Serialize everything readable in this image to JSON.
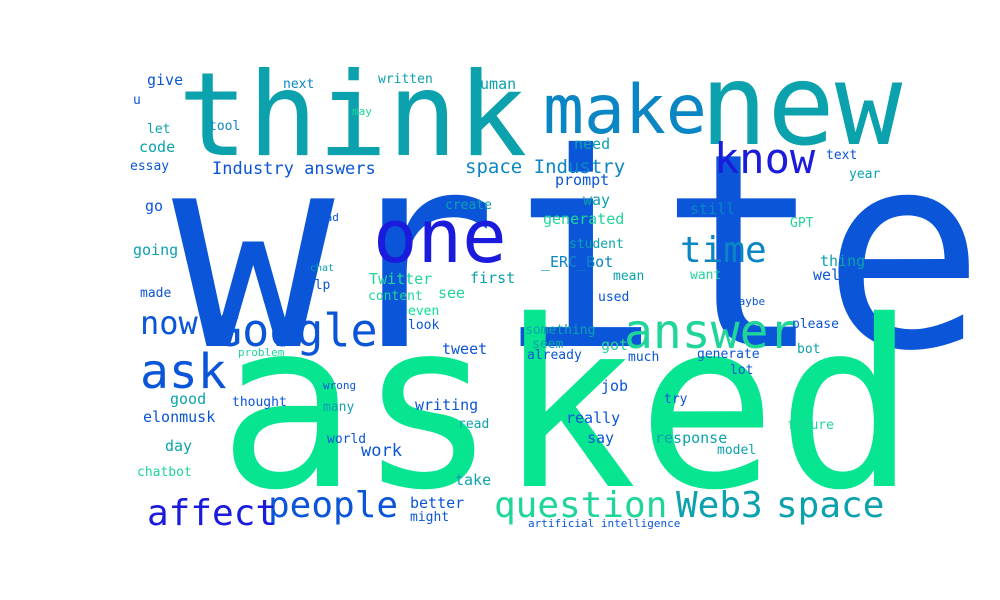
{
  "palette": {
    "dark_blue": "#1a1bdc",
    "blue": "#0a55d8",
    "teal_blue": "#0b86c4",
    "teal": "#0ba2ae",
    "green": "#08e590",
    "mint": "#1fd59a"
  },
  "words": [
    {
      "text": "write",
      "color": "blue"
    },
    {
      "text": "asked",
      "color": "green"
    },
    {
      "text": "think",
      "color": "teal"
    },
    {
      "text": "new",
      "color": "teal"
    },
    {
      "text": "make",
      "color": "teal_blue"
    },
    {
      "text": "one",
      "color": "dark_blue"
    },
    {
      "text": "know",
      "color": "dark_blue"
    },
    {
      "text": "answer",
      "color": "mint"
    },
    {
      "text": "Google",
      "color": "blue"
    },
    {
      "text": "ask",
      "color": "blue"
    },
    {
      "text": "time",
      "color": "teal_blue"
    },
    {
      "text": "now",
      "color": "blue"
    },
    {
      "text": "question",
      "color": "mint"
    },
    {
      "text": "Web3",
      "color": "teal"
    },
    {
      "text": "space",
      "color": "teal"
    },
    {
      "text": "people",
      "color": "blue"
    },
    {
      "text": "affect",
      "color": "dark_blue"
    },
    {
      "text": "Industry answers",
      "color": "blue"
    },
    {
      "text": "space Industry",
      "color": "teal_blue"
    },
    {
      "text": "give",
      "color": "blue"
    },
    {
      "text": "next",
      "color": "teal_blue"
    },
    {
      "text": "written",
      "color": "teal"
    },
    {
      "text": "human",
      "color": "teal"
    },
    {
      "text": "u",
      "color": "blue"
    },
    {
      "text": "may",
      "color": "mint"
    },
    {
      "text": "let",
      "color": "teal"
    },
    {
      "text": "tool",
      "color": "teal_blue"
    },
    {
      "text": "code",
      "color": "teal"
    },
    {
      "text": "essay",
      "color": "blue"
    },
    {
      "text": "need",
      "color": "teal"
    },
    {
      "text": "prompt",
      "color": "blue"
    },
    {
      "text": "text",
      "color": "blue"
    },
    {
      "text": "year",
      "color": "teal"
    },
    {
      "text": "go",
      "color": "blue"
    },
    {
      "text": "bad",
      "color": "blue"
    },
    {
      "text": "create",
      "color": "teal"
    },
    {
      "text": "way",
      "color": "teal"
    },
    {
      "text": "generated",
      "color": "mint"
    },
    {
      "text": "still",
      "color": "teal_blue"
    },
    {
      "text": "GPT",
      "color": "mint"
    },
    {
      "text": "going",
      "color": "teal"
    },
    {
      "text": "student",
      "color": "teal"
    },
    {
      "text": "thing",
      "color": "teal"
    },
    {
      "text": "chat",
      "color": "teal"
    },
    {
      "text": "_ERC_Bot",
      "color": "teal_blue"
    },
    {
      "text": "well",
      "color": "blue"
    },
    {
      "text": "Twitter",
      "color": "mint"
    },
    {
      "text": "first",
      "color": "teal"
    },
    {
      "text": "mean",
      "color": "teal"
    },
    {
      "text": "want",
      "color": "mint"
    },
    {
      "text": "made",
      "color": "blue"
    },
    {
      "text": "content",
      "color": "mint"
    },
    {
      "text": "help",
      "color": "blue"
    },
    {
      "text": "see",
      "color": "mint"
    },
    {
      "text": "used",
      "color": "blue"
    },
    {
      "text": "Maybe",
      "color": "blue"
    },
    {
      "text": "even",
      "color": "green"
    },
    {
      "text": "look",
      "color": "blue"
    },
    {
      "text": "something",
      "color": "teal"
    },
    {
      "text": "please",
      "color": "blue"
    },
    {
      "text": "seem",
      "color": "teal"
    },
    {
      "text": "got",
      "color": "mint"
    },
    {
      "text": "problem",
      "color": "mint"
    },
    {
      "text": "tweet",
      "color": "blue"
    },
    {
      "text": "already",
      "color": "blue"
    },
    {
      "text": "much",
      "color": "blue"
    },
    {
      "text": "generate",
      "color": "blue"
    },
    {
      "text": "bot",
      "color": "teal"
    },
    {
      "text": "lot",
      "color": "blue"
    },
    {
      "text": "wrong",
      "color": "blue"
    },
    {
      "text": "job",
      "color": "blue"
    },
    {
      "text": "good",
      "color": "teal"
    },
    {
      "text": "thought",
      "color": "blue"
    },
    {
      "text": "many",
      "color": "teal"
    },
    {
      "text": "writing",
      "color": "blue"
    },
    {
      "text": "try",
      "color": "blue"
    },
    {
      "text": "elonmusk",
      "color": "blue"
    },
    {
      "text": "really",
      "color": "blue"
    },
    {
      "text": "read",
      "color": "teal"
    },
    {
      "text": "future",
      "color": "mint"
    },
    {
      "text": "day",
      "color": "teal"
    },
    {
      "text": "world",
      "color": "blue"
    },
    {
      "text": "work",
      "color": "blue"
    },
    {
      "text": "say",
      "color": "blue"
    },
    {
      "text": "response",
      "color": "teal"
    },
    {
      "text": "model",
      "color": "teal"
    },
    {
      "text": "chatbot",
      "color": "mint"
    },
    {
      "text": "take",
      "color": "teal"
    },
    {
      "text": "better",
      "color": "blue"
    },
    {
      "text": "might",
      "color": "blue"
    },
    {
      "text": "artificial intelligence",
      "color": "blue"
    }
  ]
}
